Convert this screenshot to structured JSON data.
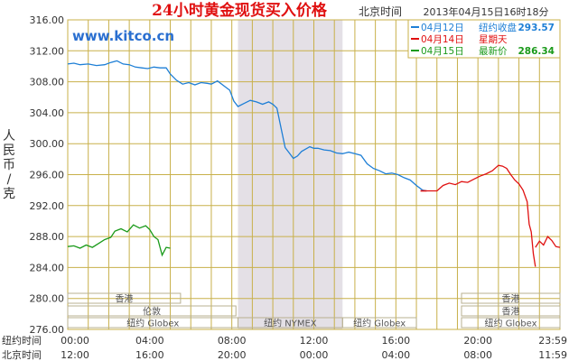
{
  "header": {
    "title": "24小时黄金现货买入价格",
    "beijing_time_label": "北京时间",
    "timestamp": "2013年04月15日16时18分",
    "watermark": "www.kitco.cn"
  },
  "legend": [
    {
      "date": "04月12日",
      "label": "纽约收盘",
      "value": "293.57",
      "color": "#1e7fd6"
    },
    {
      "date": "04月14日",
      "label": "星期天",
      "value": "",
      "color": "#e01010"
    },
    {
      "date": "04月15日",
      "label": "最新价",
      "value": "286.34",
      "color": "#1a9a1a"
    }
  ],
  "y_axis_title": [
    "人",
    "民",
    "币",
    "/",
    "克"
  ],
  "x_axis_rows": [
    {
      "label": "纽约时间",
      "ticks": [
        "00:00",
        "04:00",
        "08:00",
        "12:00",
        "16:00",
        "20:00",
        "23:59"
      ]
    },
    {
      "label": "北京时间",
      "ticks": [
        "12:00",
        "16:00",
        "20:00",
        "00:00",
        "04:00",
        "08:00",
        "11:59"
      ]
    }
  ],
  "session_bars": [
    {
      "name": "香港",
      "row": 0
    },
    {
      "name": "伦敦",
      "row": 1
    },
    {
      "name": "纽约 Globex",
      "row": 2
    },
    {
      "name": "纽约 NYMEX",
      "row": 2
    },
    {
      "name": "纽约 Globex",
      "row": 2
    },
    {
      "name": "香港",
      "row": 0
    },
    {
      "name": "香港",
      "row": 1
    },
    {
      "name": "纽约 Globex",
      "row": 2
    }
  ],
  "colors": {
    "grid": "#c8b04a",
    "axis_text": "#333333",
    "title": "#e01010",
    "highlight": "#e4e0e6"
  },
  "chart_data": {
    "type": "line",
    "title": "24小时黄金现货买入价格",
    "ylabel": "人民币/克",
    "xlabel": "",
    "x_unit": "hours from 00:00 New York time",
    "xlim": [
      0,
      24
    ],
    "ylim": [
      276,
      316
    ],
    "yticks": [
      "316.00",
      "312.00",
      "308.00",
      "304.00",
      "300.00",
      "296.00",
      "292.00",
      "288.00",
      "284.00",
      "280.00",
      "276.00"
    ],
    "grid": true,
    "nymex_session_hours": [
      8.3,
      13.4
    ],
    "series": [
      {
        "name": "04月12日",
        "color": "#1e7fd6",
        "x": [
          0,
          0.3,
          0.6,
          1.0,
          1.4,
          1.8,
          2.1,
          2.4,
          2.7,
          3.0,
          3.3,
          3.6,
          3.9,
          4.2,
          4.5,
          4.8,
          5.0,
          5.3,
          5.6,
          5.9,
          6.2,
          6.5,
          6.8,
          7.0,
          7.3,
          7.6,
          7.9,
          8.1,
          8.3,
          8.6,
          8.9,
          9.2,
          9.5,
          9.8,
          10.0,
          10.2,
          10.4,
          10.6,
          10.8,
          11.0,
          11.2,
          11.4,
          11.6,
          11.8,
          12.0,
          12.2,
          12.5,
          12.8,
          13.1,
          13.4,
          13.7,
          14.0,
          14.3,
          14.6,
          14.9,
          15.2,
          15.5,
          15.8,
          16.1,
          16.4,
          16.7,
          17.0,
          17.3,
          17.5
        ],
        "y": [
          310.3,
          310.4,
          310.2,
          310.3,
          310.1,
          310.2,
          310.5,
          310.7,
          310.3,
          310.2,
          309.9,
          309.8,
          309.7,
          309.9,
          309.8,
          309.8,
          309.0,
          308.2,
          307.7,
          307.9,
          307.6,
          307.9,
          307.8,
          307.7,
          308.1,
          307.5,
          306.9,
          305.5,
          304.8,
          305.2,
          305.6,
          305.4,
          305.1,
          305.4,
          305.1,
          304.6,
          302.0,
          299.5,
          298.8,
          298.1,
          298.4,
          299.0,
          299.3,
          299.6,
          299.4,
          299.4,
          299.2,
          299.1,
          298.8,
          298.7,
          298.9,
          298.7,
          298.5,
          297.4,
          296.8,
          296.5,
          296.1,
          296.2,
          296.0,
          295.6,
          295.3,
          294.6,
          294.0,
          293.9
        ]
      },
      {
        "name": "04月14日",
        "color": "#e01010",
        "x": [
          17.5,
          18.0,
          18.3,
          18.6,
          18.9,
          19.2,
          19.5,
          19.8,
          20.1,
          20.4,
          20.7,
          21.0,
          21.2,
          21.4,
          21.6,
          21.8,
          22.0,
          22.2,
          22.4,
          22.5,
          22.6,
          22.7,
          22.8
        ],
        "y": [
          293.9,
          293.9,
          294.6,
          294.9,
          294.7,
          295.1,
          295.0,
          295.4,
          295.8,
          296.1,
          296.5,
          297.2,
          297.1,
          296.8,
          296.0,
          295.3,
          294.8,
          294.0,
          292.5,
          289.6,
          288.6,
          285.8,
          284.1
        ]
      },
      {
        "name": "04月15日",
        "color": "#1a9a1a",
        "x": [
          0,
          0.3,
          0.6,
          0.9,
          1.2,
          1.5,
          1.8,
          2.1,
          2.3,
          2.6,
          2.9,
          3.2,
          3.5,
          3.8,
          4.0,
          4.2,
          4.4,
          4.6,
          4.8,
          5.0
        ],
        "y": [
          286.7,
          286.8,
          286.5,
          286.9,
          286.6,
          287.1,
          287.6,
          287.9,
          288.7,
          289.0,
          288.6,
          289.5,
          289.1,
          289.4,
          288.9,
          288.0,
          287.6,
          285.6,
          286.6,
          286.5
        ]
      },
      {
        "name": "04月15日",
        "color": "#e01010",
        "x": [
          22.8,
          23.0,
          23.2,
          23.4,
          23.6,
          23.8,
          24.0
        ],
        "y": [
          286.6,
          287.4,
          286.9,
          288.0,
          287.5,
          286.7,
          286.6
        ]
      }
    ]
  }
}
